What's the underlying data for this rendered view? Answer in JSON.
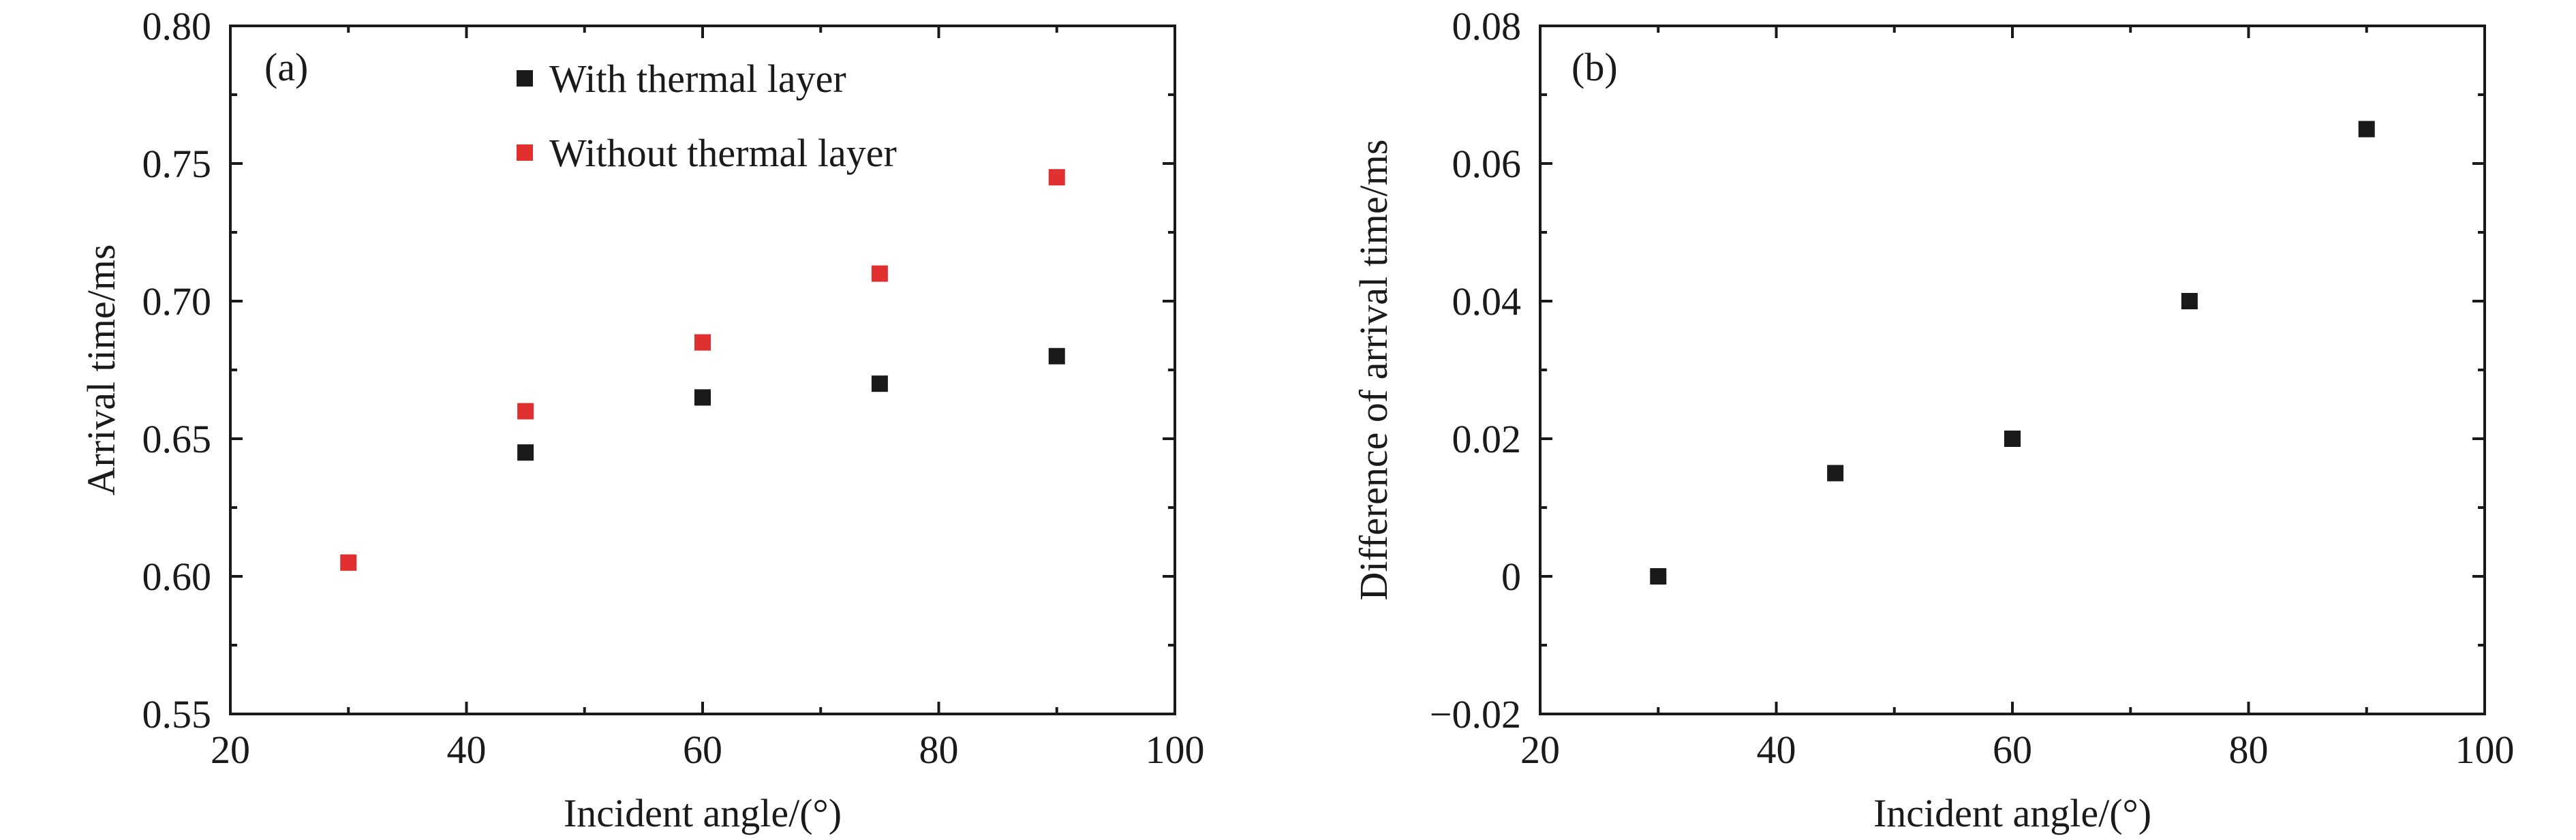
{
  "chart_data": [
    {
      "type": "scatter",
      "panel_label": "(a)",
      "xlabel": "Incident angle/(°)",
      "ylabel": "Arrival time/ms",
      "xlim": [
        20,
        100
      ],
      "ylim": [
        0.55,
        0.8
      ],
      "x_ticks": [
        20,
        40,
        60,
        80,
        100
      ],
      "x_tick_labels": [
        "20",
        "40",
        "60",
        "80",
        "100"
      ],
      "y_ticks": [
        0.55,
        0.6,
        0.65,
        0.7,
        0.75,
        0.8
      ],
      "y_tick_labels": [
        "0.55",
        "0.60",
        "0.65",
        "0.70",
        "0.75",
        "0.80"
      ],
      "legend_position": "top",
      "series": [
        {
          "name": "With thermal layer",
          "color": "#1a1a1a",
          "marker": "square",
          "x": [
            45,
            60,
            75,
            90
          ],
          "y": [
            0.645,
            0.665,
            0.67,
            0.68
          ]
        },
        {
          "name": "Without thermal layer",
          "color": "#e03030",
          "marker": "square",
          "x": [
            30,
            45,
            60,
            75,
            90
          ],
          "y": [
            0.605,
            0.66,
            0.685,
            0.71,
            0.745
          ]
        }
      ]
    },
    {
      "type": "scatter",
      "panel_label": "(b)",
      "xlabel": "Incident angle/(°)",
      "ylabel": "Difference of arrival time/ms",
      "xlim": [
        20,
        100
      ],
      "ylim": [
        -0.02,
        0.08
      ],
      "x_ticks": [
        20,
        40,
        60,
        80,
        100
      ],
      "x_tick_labels": [
        "20",
        "40",
        "60",
        "80",
        "100"
      ],
      "y_ticks": [
        -0.02,
        0,
        0.02,
        0.04,
        0.06,
        0.08
      ],
      "y_tick_labels": [
        "−0.02",
        "0",
        "0.02",
        "0.04",
        "0.06",
        "0.08"
      ],
      "series": [
        {
          "color": "#1a1a1a",
          "marker": "square",
          "x": [
            30,
            45,
            60,
            75,
            90
          ],
          "y": [
            0.0,
            0.015,
            0.02,
            0.04,
            0.065
          ]
        }
      ]
    }
  ]
}
